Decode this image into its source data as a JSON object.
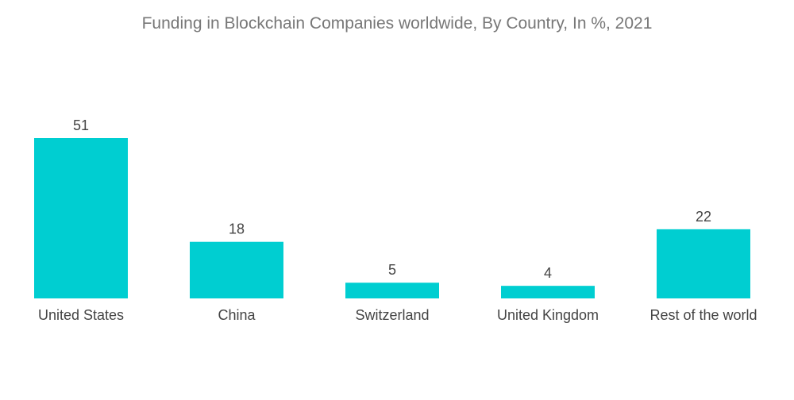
{
  "chart_data": {
    "type": "bar",
    "title": "Funding in Blockchain Companies worldwide, By Country, In %, 2021",
    "categories": [
      "United States",
      "China",
      "Switzerland",
      "United Kingdom",
      "Rest of the world"
    ],
    "values": [
      51,
      18,
      5,
      4,
      22
    ],
    "xlabel": "",
    "ylabel": "",
    "ylim": [
      0,
      51
    ],
    "grid": false,
    "bar_color": "#00CED1"
  }
}
